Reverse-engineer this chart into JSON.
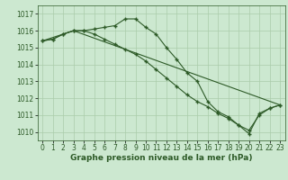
{
  "title": "Graphe pression niveau de la mer (hPa)",
  "background_color": "#cce8d0",
  "line_color": "#2d5a27",
  "grid_color": "#aaccaa",
  "ylim": [
    1009.5,
    1017.5
  ],
  "xlim": [
    -0.5,
    23.5
  ],
  "yticks": [
    1010,
    1011,
    1012,
    1013,
    1014,
    1015,
    1016,
    1017
  ],
  "xticks": [
    0,
    1,
    2,
    3,
    4,
    5,
    6,
    7,
    8,
    9,
    10,
    11,
    12,
    13,
    14,
    15,
    16,
    17,
    18,
    19,
    20,
    21,
    22,
    23
  ],
  "line1_x": [
    0,
    1,
    2,
    3,
    4,
    5,
    6,
    7,
    8,
    9,
    10,
    11,
    12,
    13,
    14,
    15,
    16,
    17,
    18,
    19,
    20,
    21,
    22,
    23
  ],
  "line1_y": [
    1015.4,
    1015.5,
    1015.8,
    1016.0,
    1016.0,
    1016.1,
    1016.2,
    1016.3,
    1016.7,
    1016.7,
    1016.2,
    1015.8,
    1015.0,
    1014.3,
    1013.5,
    1013.0,
    1011.8,
    1011.2,
    1010.9,
    1010.4,
    1009.9,
    1011.1,
    1011.4,
    1011.6
  ],
  "line2_x": [
    0,
    3,
    23
  ],
  "line2_y": [
    1015.4,
    1016.0,
    1011.6
  ],
  "line3_x": [
    0,
    1,
    2,
    3,
    4,
    5,
    6,
    7,
    8,
    9,
    10,
    11,
    12,
    13,
    14,
    15,
    16,
    17,
    18,
    19,
    20,
    21,
    22,
    23
  ],
  "line3_y": [
    1015.4,
    1015.5,
    1015.8,
    1016.0,
    1016.0,
    1015.8,
    1015.5,
    1015.2,
    1014.9,
    1014.6,
    1014.2,
    1013.7,
    1013.2,
    1012.7,
    1012.2,
    1011.8,
    1011.5,
    1011.1,
    1010.8,
    1010.4,
    1010.1,
    1011.0,
    1011.4,
    1011.6
  ],
  "title_fontsize": 6.5,
  "tick_fontsize": 5.5
}
